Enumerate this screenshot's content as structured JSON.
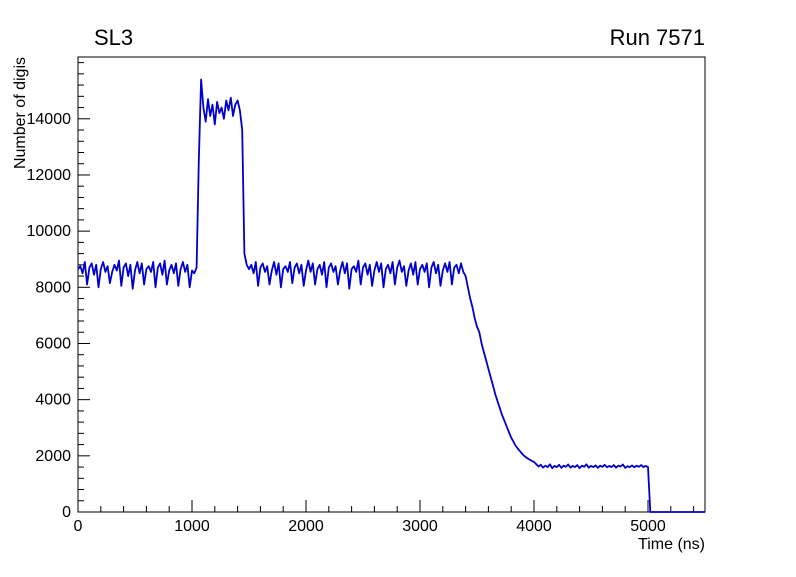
{
  "chart_data": {
    "type": "line",
    "title": "SL3",
    "annotation": "Run 7571",
    "xlabel": "Time (ns)",
    "ylabel": "Number of digis",
    "xlim": [
      0,
      5500
    ],
    "ylim": [
      0,
      16200
    ],
    "x_major_ticks": [
      0,
      1000,
      2000,
      3000,
      4000,
      5000
    ],
    "x_minor_step": 200,
    "y_major_ticks": [
      0,
      2000,
      4000,
      6000,
      8000,
      10000,
      12000,
      14000
    ],
    "y_minor_step": 400,
    "line_color": "#0000cc",
    "grid": false,
    "legend_position": "none",
    "series": [
      {
        "name": "number-of-digis-vs-time",
        "x_start": 0,
        "x_step": 20,
        "y": [
          8650,
          8750,
          8500,
          8900,
          8100,
          8700,
          8850,
          8450,
          8800,
          8000,
          8650,
          8900,
          8550,
          8750,
          8150,
          8550,
          8800,
          8600,
          8950,
          8050,
          8700,
          8850,
          8400,
          8800,
          7950,
          8600,
          8900,
          8500,
          8850,
          8100,
          8650,
          8750,
          8550,
          8900,
          8000,
          8700,
          8850,
          8450,
          8950,
          8100,
          8600,
          8800,
          8500,
          8850,
          8050,
          8650,
          8900,
          8550,
          8800,
          8000,
          8600,
          8500,
          8700,
          12500,
          15400,
          14400,
          13900,
          14700,
          14100,
          14500,
          13800,
          14600,
          14200,
          14400,
          14000,
          14650,
          14300,
          14750,
          14100,
          14500,
          14650,
          14300,
          13600,
          9200,
          8800,
          8650,
          8800,
          8500,
          8900,
          8050,
          8700,
          8850,
          8550,
          8750,
          8100,
          8600,
          8900,
          8450,
          8850,
          8000,
          8650,
          8750,
          8550,
          8900,
          8150,
          8700,
          8850,
          8500,
          8800,
          8050,
          8600,
          8950,
          8550,
          8850,
          8100,
          8650,
          8800,
          8450,
          8900,
          8000,
          8700,
          8850,
          8550,
          8750,
          8100,
          8600,
          8900,
          8500,
          8850,
          7950,
          8650,
          8750,
          8550,
          8950,
          8100,
          8700,
          8850,
          8450,
          8800,
          8050,
          8600,
          8900,
          8550,
          8850,
          8000,
          8650,
          8800,
          8500,
          8900,
          8100,
          8700,
          8950,
          8550,
          8750,
          8050,
          8600,
          8850,
          8450,
          8900,
          8100,
          8650,
          8800,
          8550,
          8850,
          8000,
          8700,
          8900,
          8500,
          8800,
          8050,
          8600,
          8850,
          8550,
          8900,
          8100,
          8700,
          8800,
          8500,
          8850,
          8550,
          8400,
          8000,
          7600,
          7300,
          6900,
          6600,
          6400,
          6000,
          5700,
          5400,
          5100,
          4800,
          4500,
          4200,
          3950,
          3700,
          3450,
          3250,
          3050,
          2850,
          2650,
          2500,
          2350,
          2250,
          2150,
          2050,
          1980,
          1920,
          1870,
          1820,
          1780,
          1700,
          1620,
          1680,
          1580,
          1650,
          1600,
          1700,
          1560,
          1640,
          1600,
          1680,
          1570,
          1650,
          1610,
          1690,
          1580,
          1640,
          1600,
          1670,
          1560,
          1650,
          1610,
          1700,
          1580,
          1640,
          1600,
          1660,
          1570,
          1650,
          1610,
          1680,
          1590,
          1640,
          1600,
          1670,
          1580,
          1650,
          1620,
          1690,
          1570,
          1630,
          1600,
          1660,
          1590,
          1650,
          1610,
          1670,
          1600,
          1640,
          1600,
          0,
          0,
          0,
          0,
          0,
          0,
          0,
          0,
          0,
          0,
          0,
          0,
          0,
          0,
          0,
          0,
          0,
          0,
          0,
          0,
          0,
          0,
          0,
          0,
          0
        ]
      }
    ]
  }
}
